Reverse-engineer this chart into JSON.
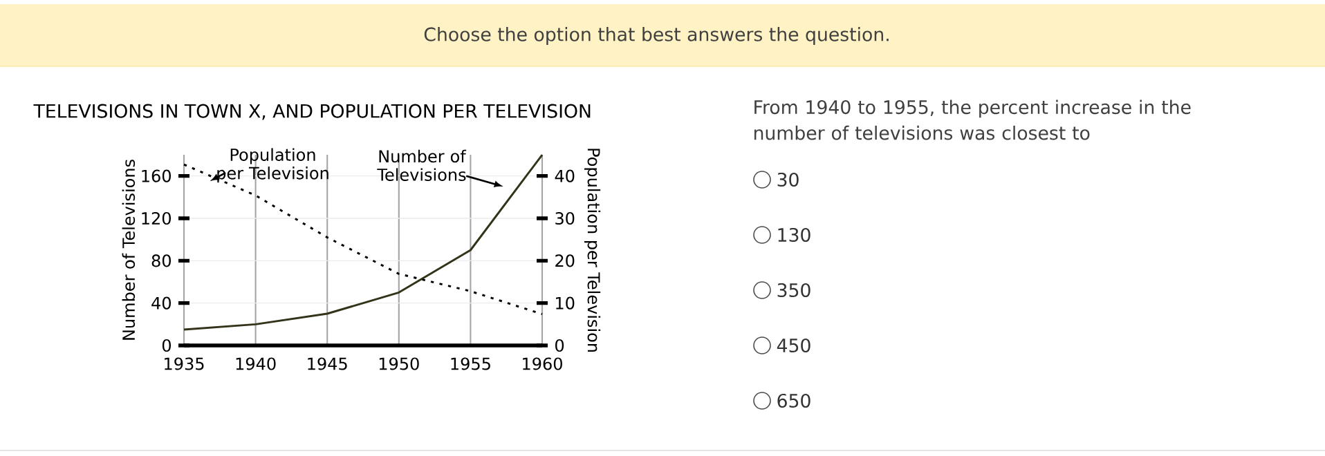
{
  "chart_data": {
    "type": "line",
    "title": "TELEVISIONS IN TOWN X, AND POPULATION PER TELEVISION",
    "ylabel": "Number of Televisions",
    "y2label": "Population per Television",
    "x": [
      1935,
      1940,
      1945,
      1950,
      1955,
      1960
    ],
    "series": [
      {
        "name": "Number of Televisions",
        "color": "#33331a",
        "line_style": "solid",
        "values": [
          15,
          20,
          30,
          50,
          90,
          180
        ]
      },
      {
        "name": "Population per Television",
        "color": "#000000",
        "line_style": "dotted",
        "axis": "y2",
        "values": [
          42.7,
          35.4,
          25.5,
          16.9,
          12.8,
          7.4
        ]
      }
    ],
    "xlim": [
      1935,
      1960
    ],
    "xticks": [
      1935,
      1940,
      1945,
      1950,
      1955,
      1960
    ],
    "ylim": [
      0,
      180
    ],
    "yticks": [
      0,
      40,
      80,
      120,
      160
    ],
    "y2lim": [
      0,
      45
    ],
    "y2ticks": [
      0,
      10,
      20,
      30,
      40
    ],
    "grid": true,
    "marker": "none",
    "annotations": [
      "Choose the option that best answers the question.",
      "From 1940 to 1955, the percent increase in the number of televisions was closest to",
      "30",
      "130",
      "350",
      "450",
      "650"
    ]
  }
}
